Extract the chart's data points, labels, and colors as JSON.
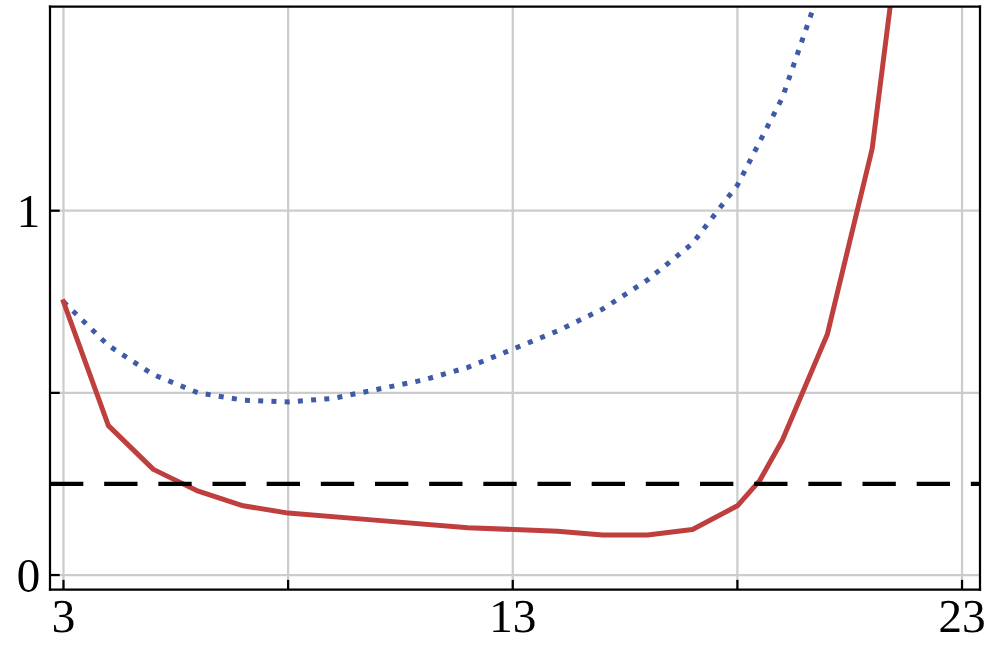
{
  "chart_data": {
    "type": "line",
    "xlim": [
      2.7,
      23.4
    ],
    "ylim": [
      -0.04,
      1.56
    ],
    "xticks": [
      3,
      {
        "value": 8,
        "label": null
      },
      13,
      {
        "value": 18,
        "label": null
      },
      23
    ],
    "yticks": [
      0,
      {
        "value": 0.5,
        "label": null
      },
      1
    ],
    "grid": true,
    "series": [
      {
        "color": "#3f5aa6",
        "line_style": "dotted",
        "x": [
          3,
          4,
          5,
          6,
          7,
          8,
          9,
          10,
          11,
          12,
          13,
          14,
          15,
          16,
          17,
          18,
          19,
          19.7
        ],
        "values": [
          0.75,
          0.63,
          0.55,
          0.5,
          0.48,
          0.475,
          0.485,
          0.51,
          0.535,
          0.57,
          0.62,
          0.67,
          0.73,
          0.81,
          0.91,
          1.07,
          1.31,
          1.56
        ]
      },
      {
        "color": "#bf3f3f",
        "line_style": "solid",
        "x": [
          3,
          4,
          5,
          6,
          7,
          8,
          10,
          12,
          14,
          15,
          16,
          17,
          18,
          18.5,
          19,
          20,
          21,
          21.4
        ],
        "values": [
          0.75,
          0.41,
          0.29,
          0.23,
          0.19,
          0.17,
          0.15,
          0.13,
          0.12,
          0.11,
          0.11,
          0.125,
          0.19,
          0.26,
          0.37,
          0.66,
          1.17,
          1.56
        ]
      }
    ],
    "ref_lines": [
      {
        "axis": "y",
        "value": 0.25,
        "color": "#000000",
        "line_style": "dashed"
      }
    ]
  }
}
